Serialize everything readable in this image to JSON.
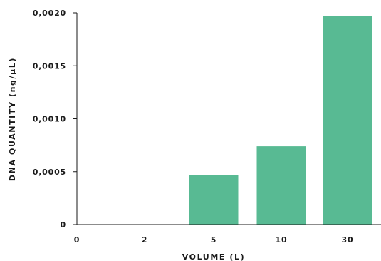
{
  "chart_data": {
    "type": "bar",
    "categories": [
      "0",
      "2",
      "5",
      "10",
      "30"
    ],
    "values": [
      0,
      0,
      0.00047,
      0.00074,
      0.00197
    ],
    "title": "",
    "xlabel": "VOLUME (L)",
    "ylabel": "DNA QUANTITY (ng/µL)",
    "ylim": [
      0,
      0.002
    ],
    "yticks": [
      {
        "value": 0,
        "label": "0"
      },
      {
        "value": 0.0005,
        "label": "0,0005"
      },
      {
        "value": 0.001,
        "label": "0,0010"
      },
      {
        "value": 0.0015,
        "label": "0,0015"
      },
      {
        "value": 0.002,
        "label": "0,0020"
      }
    ],
    "bar_color": "#58ba93",
    "axis_color": "#1a1a1a",
    "grid": false,
    "legend": "none"
  }
}
